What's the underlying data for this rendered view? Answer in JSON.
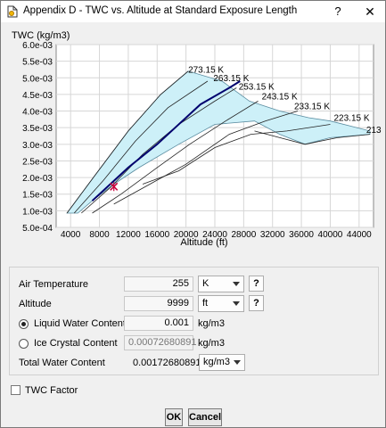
{
  "window": {
    "title": "Appendix D - TWC vs. Altitude at Standard Exposure Length",
    "help_glyph": "?",
    "close_glyph": "✕",
    "icons": {
      "app": "app-icon",
      "help": "help-icon",
      "close": "close-icon"
    }
  },
  "chart_data": {
    "type": "area",
    "title": "",
    "ylabel": "TWC (kg/m3)",
    "xlabel": "Altitude (ft)",
    "xlim": [
      2000,
      46000
    ],
    "ylim": [
      0.0005,
      0.006
    ],
    "xticks": [
      4000,
      8000,
      12000,
      16000,
      20000,
      24000,
      28000,
      32000,
      36000,
      40000,
      44000
    ],
    "ytick_values": [
      0.0005,
      0.001,
      0.0015,
      0.002,
      0.0025,
      0.003,
      0.0035,
      0.004,
      0.0045,
      0.005,
      0.0055,
      0.006
    ],
    "ytick_labels": [
      "5.0e-04",
      "1.0e-03",
      "1.5e-03",
      "2.0e-03",
      "2.5e-03",
      "3.0e-03",
      "3.5e-03",
      "4.0e-03",
      "4.5e-03",
      "5.0e-03",
      "5.5e-03",
      "6.0e-03"
    ],
    "grid": true,
    "envelope": [
      [
        3500,
        0.00093
      ],
      [
        7500,
        0.0021
      ],
      [
        12000,
        0.0034
      ],
      [
        16500,
        0.0045
      ],
      [
        20300,
        0.0052
      ],
      [
        25000,
        0.0049
      ],
      [
        28800,
        0.0043
      ],
      [
        33000,
        0.004
      ],
      [
        37000,
        0.0038
      ],
      [
        40000,
        0.0037
      ],
      [
        45500,
        0.0034
      ],
      [
        45500,
        0.0033
      ],
      [
        40000,
        0.0032
      ],
      [
        36500,
        0.003
      ],
      [
        33000,
        0.0033
      ],
      [
        29500,
        0.0037
      ],
      [
        24000,
        0.0036
      ],
      [
        19000,
        0.003
      ],
      [
        13500,
        0.0023
      ],
      [
        10000,
        0.0018
      ],
      [
        7000,
        0.0013
      ],
      [
        5000,
        0.00093
      ]
    ],
    "series": [
      {
        "name": "273.15 K",
        "label_at": [
          20300,
          0.00515
        ],
        "points": [
          [
            3500,
            0.00093
          ],
          [
            7500,
            0.0021
          ],
          [
            12000,
            0.0034
          ],
          [
            16500,
            0.0045
          ],
          [
            20300,
            0.0052
          ]
        ]
      },
      {
        "name": "263.15 K",
        "label_at": [
          23800,
          0.0049
        ],
        "points": [
          [
            4500,
            0.00093
          ],
          [
            8500,
            0.0019
          ],
          [
            13000,
            0.0031
          ],
          [
            17500,
            0.0041
          ],
          [
            23000,
            0.0049
          ]
        ]
      },
      {
        "name": "253.15 K",
        "label_at": [
          27300,
          0.00465
        ],
        "points": [
          [
            5500,
            0.00093
          ],
          [
            9500,
            0.0017
          ],
          [
            14000,
            0.0027
          ],
          [
            19000,
            0.0036
          ],
          [
            24000,
            0.0043
          ],
          [
            27000,
            0.0047
          ]
        ]
      },
      {
        "name": "243.15 K",
        "label_at": [
          30500,
          0.00435
        ],
        "points": [
          [
            7000,
            0.00093
          ],
          [
            11000,
            0.0015
          ],
          [
            16000,
            0.0023
          ],
          [
            20500,
            0.003
          ],
          [
            25500,
            0.0037
          ],
          [
            30000,
            0.0043
          ]
        ]
      },
      {
        "name": "233.15 K",
        "label_at": [
          35000,
          0.00405
        ],
        "points": [
          [
            10000,
            0.0012
          ],
          [
            15000,
            0.0018
          ],
          [
            20000,
            0.0024
          ],
          [
            26000,
            0.0033
          ],
          [
            31000,
            0.0037
          ],
          [
            35500,
            0.004
          ]
        ]
      },
      {
        "name": "223.15 K",
        "label_at": [
          40500,
          0.0037
        ],
        "points": [
          [
            14000,
            0.0018
          ],
          [
            19000,
            0.0022
          ],
          [
            24000,
            0.0029
          ],
          [
            29000,
            0.0033
          ],
          [
            34000,
            0.0034
          ],
          [
            40000,
            0.0036
          ]
        ]
      },
      {
        "name": "213",
        "label_at": [
          45000,
          0.00335
        ],
        "points": [
          [
            29500,
            0.0034
          ],
          [
            33000,
            0.0032
          ],
          [
            36500,
            0.003
          ],
          [
            41000,
            0.0032
          ],
          [
            45500,
            0.0033
          ]
        ]
      }
    ],
    "current_curve": [
      [
        7000,
        0.0013
      ],
      [
        9000,
        0.0017
      ],
      [
        12000,
        0.0023
      ],
      [
        16000,
        0.003
      ],
      [
        19500,
        0.0037
      ],
      [
        22000,
        0.0042
      ],
      [
        26000,
        0.0047
      ],
      [
        27500,
        0.0049
      ]
    ],
    "current_point": [
      9999,
      0.00172680891
    ],
    "colors": {
      "envelope": "#cdf0f8",
      "isotherm": "#222222",
      "current_curve": "#00006e",
      "marker": "#c8003c",
      "grid": "#d6d6d6"
    }
  },
  "form": {
    "air_temperature": {
      "label": "Air Temperature",
      "value": "255",
      "unit": "K",
      "help": "?"
    },
    "altitude": {
      "label": "Altitude",
      "value": "9999",
      "unit": "ft",
      "help": "?"
    },
    "liquid_water_content": {
      "label": "Liquid Water Content",
      "value": "0.001",
      "unit": "kg/m3",
      "selected": true
    },
    "ice_crystal_content": {
      "label": "Ice Crystal Content",
      "value": "0.00072680891",
      "unit": "kg/m3",
      "selected": false
    },
    "total_water_content": {
      "label": "Total Water Content",
      "value": "0.00172680891",
      "unit": "kg/m3"
    }
  },
  "twc_factor": {
    "label": "TWC Factor",
    "checked": false
  },
  "buttons": {
    "ok": "OK",
    "cancel": "Cancel"
  }
}
